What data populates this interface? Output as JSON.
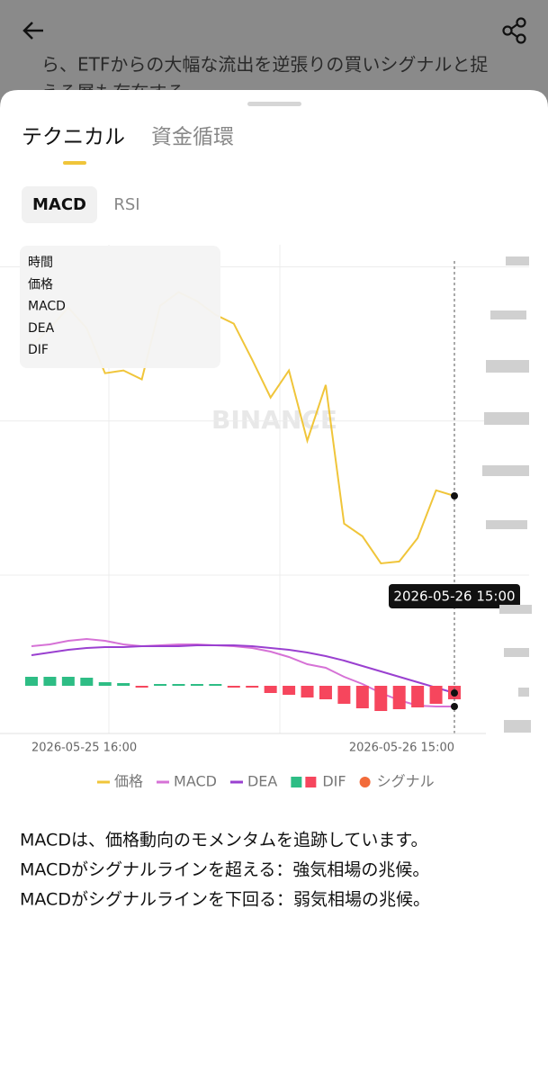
{
  "background_text": [
    "ら、ETFからの大幅な流出を逆張りの買いシグナルと捉",
    "える層も存在する。"
  ],
  "tabs": [
    "テクニカル",
    "資金循環"
  ],
  "subtabs": [
    "MACD",
    "RSI"
  ],
  "tooltip_labels": [
    "時間",
    "価格",
    "MACD",
    "DEA",
    "DIF"
  ],
  "watermark": "BINANCE",
  "chart_data": {
    "type": "line",
    "categories": [
      "2026-05-25 16:00",
      null,
      null,
      null,
      null,
      null,
      null,
      null,
      null,
      null,
      null,
      null,
      null,
      null,
      null,
      null,
      null,
      null,
      null,
      null,
      null,
      null,
      null,
      "2026-05-26 15:00"
    ],
    "ylim": [
      0,
      106
    ],
    "yticks": [
      0,
      50,
      100
    ],
    "y2lim": [
      -53,
      112
    ],
    "grid": true,
    "series": [
      {
        "name": "価格",
        "color": "#f0c53a",
        "values": [
          74.3,
          80.1,
          86.8,
          80.1,
          65.5,
          66.4,
          63.5,
          87.4,
          91.8,
          88.9,
          84.5,
          81.6,
          69.9,
          57.6,
          66.4,
          43.6,
          61.7,
          16.7,
          12.6,
          3.8,
          4.4,
          12.0,
          27.5,
          25.7
        ]
      },
      {
        "name": "MACD",
        "color": "#d672d6",
        "axis": "y2",
        "values": [
          44,
          46,
          50,
          52,
          50,
          46,
          44,
          45,
          46,
          46,
          45,
          44,
          42,
          38,
          32,
          24,
          20,
          10,
          2,
          -8,
          -16,
          -22,
          -23,
          -23
        ]
      },
      {
        "name": "DEA",
        "color": "#9a40d0",
        "axis": "y2",
        "values": [
          34,
          37,
          40,
          42,
          43,
          43,
          44,
          44,
          44,
          45,
          45,
          45,
          44,
          42,
          40,
          37,
          33,
          28,
          22,
          16,
          10,
          4,
          -2,
          -8
        ]
      },
      {
        "name": "DIF",
        "type": "bar",
        "color": "#2ebd85",
        "negative_color": "#f6465d",
        "axis": "y2",
        "values": [
          10,
          10,
          10,
          9,
          4,
          3,
          -2,
          2,
          2,
          2,
          2,
          -2,
          -2,
          -8,
          -10,
          -13,
          -15,
          -20,
          -25,
          -28,
          -26,
          -24,
          -20,
          -15
        ]
      }
    ],
    "extra_legend": [
      {
        "name": "シグナル",
        "color": "#f26b3a"
      }
    ]
  },
  "description": [
    "MACDは、価格動向のモメンタムを追跡しています。",
    "MACDがシグナルラインを超える：強気相場の兆候。",
    "MACDがシグナルラインを下回る：弱気相場の兆候。"
  ]
}
